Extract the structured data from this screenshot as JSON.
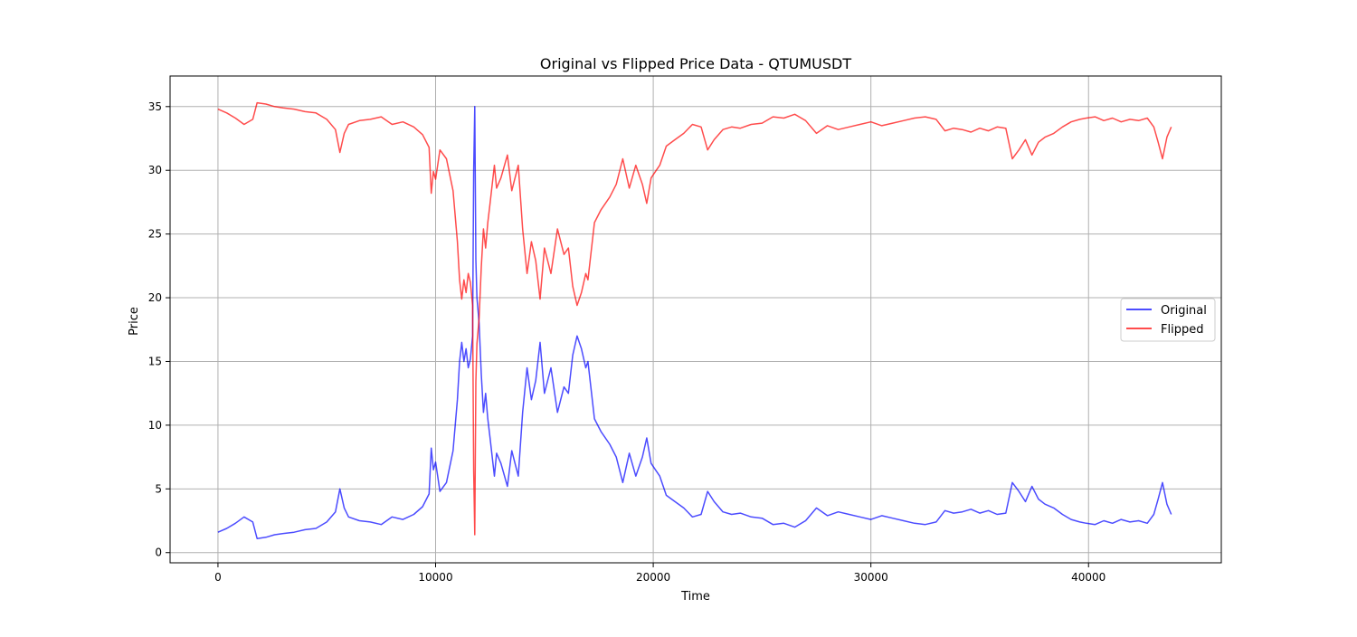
{
  "chart_data": {
    "type": "line",
    "title": "Original vs Flipped Price Data - QTUMUSDT",
    "xlabel": "Time",
    "ylabel": "Price",
    "xlim": [
      -2200,
      46100
    ],
    "ylim": [
      -0.8,
      37.4
    ],
    "x_ticks": [
      0,
      10000,
      20000,
      30000,
      40000
    ],
    "x_tick_labels": [
      "0",
      "10000",
      "20000",
      "30000",
      "40000"
    ],
    "y_ticks": [
      0,
      5,
      10,
      15,
      20,
      25,
      30,
      35
    ],
    "y_tick_labels": [
      "0",
      "5",
      "10",
      "15",
      "20",
      "25",
      "30",
      "35"
    ],
    "grid": true,
    "legend_position": "center-right",
    "series": [
      {
        "name": "Original",
        "color": "#0000ff",
        "x": [
          0,
          400,
          800,
          1200,
          1600,
          1800,
          2200,
          2600,
          3000,
          3500,
          4000,
          4500,
          5000,
          5400,
          5600,
          5800,
          6000,
          6500,
          7000,
          7500,
          8000,
          8500,
          9000,
          9400,
          9700,
          9800,
          9900,
          10000,
          10200,
          10500,
          10800,
          11000,
          11100,
          11200,
          11300,
          11400,
          11500,
          11600,
          11700,
          11750,
          11800,
          11850,
          11900,
          12000,
          12100,
          12200,
          12300,
          12400,
          12500,
          12700,
          12800,
          13000,
          13300,
          13500,
          13800,
          14000,
          14200,
          14400,
          14600,
          14800,
          15000,
          15300,
          15600,
          15900,
          16100,
          16300,
          16500,
          16700,
          16900,
          17000,
          17300,
          17600,
          18000,
          18300,
          18600,
          18900,
          19200,
          19500,
          19700,
          19900,
          20100,
          20300,
          20600,
          21000,
          21400,
          21800,
          22200,
          22500,
          22800,
          23200,
          23600,
          24000,
          24500,
          25000,
          25500,
          26000,
          26500,
          27000,
          27500,
          28000,
          28500,
          29000,
          29500,
          30000,
          30500,
          31000,
          31500,
          32000,
          32500,
          33000,
          33400,
          33800,
          34200,
          34600,
          35000,
          35400,
          35800,
          36200,
          36500,
          36800,
          37100,
          37400,
          37700,
          38000,
          38400,
          38800,
          39200,
          39600,
          39900,
          40300,
          40700,
          41100,
          41500,
          41900,
          42300,
          42700,
          43000,
          43200,
          43400,
          43600,
          43800
        ],
        "values": [
          1.6,
          1.9,
          2.3,
          2.8,
          2.4,
          1.1,
          1.2,
          1.4,
          1.5,
          1.6,
          1.8,
          1.9,
          2.4,
          3.2,
          5.0,
          3.5,
          2.8,
          2.5,
          2.4,
          2.2,
          2.8,
          2.6,
          3.0,
          3.6,
          4.6,
          8.2,
          6.5,
          7.1,
          4.8,
          5.5,
          8.0,
          12.0,
          15.0,
          16.5,
          15.0,
          16.0,
          14.5,
          15.2,
          17.0,
          30.0,
          35.0,
          23.0,
          20.0,
          18.0,
          14.0,
          11.0,
          12.5,
          10.5,
          9.0,
          6.0,
          7.8,
          7.0,
          5.2,
          8.0,
          6.0,
          11.0,
          14.5,
          12.0,
          13.5,
          16.5,
          12.5,
          14.5,
          11.0,
          13.0,
          12.5,
          15.5,
          17.0,
          16.0,
          14.5,
          15.0,
          10.5,
          9.5,
          8.5,
          7.5,
          5.5,
          7.8,
          6.0,
          7.5,
          9.0,
          7.0,
          6.5,
          6.0,
          4.5,
          4.0,
          3.5,
          2.8,
          3.0,
          4.8,
          4.0,
          3.2,
          3.0,
          3.1,
          2.8,
          2.7,
          2.2,
          2.3,
          2.0,
          2.5,
          3.5,
          2.9,
          3.2,
          3.0,
          2.8,
          2.6,
          2.9,
          2.7,
          2.5,
          2.3,
          2.2,
          2.4,
          3.3,
          3.1,
          3.2,
          3.4,
          3.1,
          3.3,
          3.0,
          3.1,
          5.5,
          4.8,
          4.0,
          5.2,
          4.2,
          3.8,
          3.5,
          3.0,
          2.6,
          2.4,
          2.3,
          2.2,
          2.5,
          2.3,
          2.6,
          2.4,
          2.5,
          2.3,
          3.0,
          4.2,
          5.5,
          3.8,
          3.0
        ],
        "opacity": 0.7
      },
      {
        "name": "Flipped",
        "color": "#ff0000",
        "x": [
          0,
          400,
          800,
          1200,
          1600,
          1800,
          2200,
          2600,
          3000,
          3500,
          4000,
          4500,
          5000,
          5400,
          5600,
          5800,
          6000,
          6500,
          7000,
          7500,
          8000,
          8500,
          9000,
          9400,
          9700,
          9800,
          9900,
          10000,
          10200,
          10500,
          10800,
          11000,
          11100,
          11200,
          11300,
          11400,
          11500,
          11600,
          11700,
          11750,
          11800,
          11850,
          11900,
          12000,
          12100,
          12200,
          12300,
          12400,
          12500,
          12700,
          12800,
          13000,
          13300,
          13500,
          13800,
          14000,
          14200,
          14400,
          14600,
          14800,
          15000,
          15300,
          15600,
          15900,
          16100,
          16300,
          16500,
          16700,
          16900,
          17000,
          17300,
          17600,
          18000,
          18300,
          18600,
          18900,
          19200,
          19500,
          19700,
          19900,
          20100,
          20300,
          20600,
          21000,
          21400,
          21800,
          22200,
          22500,
          22800,
          23200,
          23600,
          24000,
          24500,
          25000,
          25500,
          26000,
          26500,
          27000,
          27500,
          28000,
          28500,
          29000,
          29500,
          30000,
          30500,
          31000,
          31500,
          32000,
          32500,
          33000,
          33400,
          33800,
          34200,
          34600,
          35000,
          35400,
          35800,
          36200,
          36500,
          36800,
          37100,
          37400,
          37700,
          38000,
          38400,
          38800,
          39200,
          39600,
          39900,
          40300,
          40700,
          41100,
          41500,
          41900,
          42300,
          42700,
          43000,
          43200,
          43400,
          43600,
          43800
        ],
        "values": [
          34.8,
          34.5,
          34.1,
          33.6,
          34.0,
          35.3,
          35.2,
          35.0,
          34.9,
          34.8,
          34.6,
          34.5,
          34.0,
          33.2,
          31.4,
          32.9,
          33.6,
          33.9,
          34.0,
          34.2,
          33.6,
          33.8,
          33.4,
          32.8,
          31.8,
          28.2,
          29.9,
          29.3,
          31.6,
          30.9,
          28.4,
          24.4,
          21.4,
          19.9,
          21.4,
          20.4,
          21.9,
          21.2,
          19.4,
          6.4,
          1.4,
          13.4,
          16.4,
          18.4,
          22.4,
          25.4,
          23.9,
          25.9,
          27.4,
          30.4,
          28.6,
          29.4,
          31.2,
          28.4,
          30.4,
          25.4,
          21.9,
          24.4,
          22.9,
          19.9,
          23.9,
          21.9,
          25.4,
          23.4,
          23.9,
          20.9,
          19.4,
          20.4,
          21.9,
          21.4,
          25.9,
          26.9,
          27.9,
          28.9,
          30.9,
          28.6,
          30.4,
          28.9,
          27.4,
          29.4,
          29.9,
          30.4,
          31.9,
          32.4,
          32.9,
          33.6,
          33.4,
          31.6,
          32.4,
          33.2,
          33.4,
          33.3,
          33.6,
          33.7,
          34.2,
          34.1,
          34.4,
          33.9,
          32.9,
          33.5,
          33.2,
          33.4,
          33.6,
          33.8,
          33.5,
          33.7,
          33.9,
          34.1,
          34.2,
          34.0,
          33.1,
          33.3,
          33.2,
          33.0,
          33.3,
          33.1,
          33.4,
          33.3,
          30.9,
          31.6,
          32.4,
          31.2,
          32.2,
          32.6,
          32.9,
          33.4,
          33.8,
          34.0,
          34.1,
          34.2,
          33.9,
          34.1,
          33.8,
          34.0,
          33.9,
          34.1,
          33.4,
          32.2,
          30.9,
          32.6,
          33.4
        ],
        "opacity": 0.7
      }
    ]
  }
}
